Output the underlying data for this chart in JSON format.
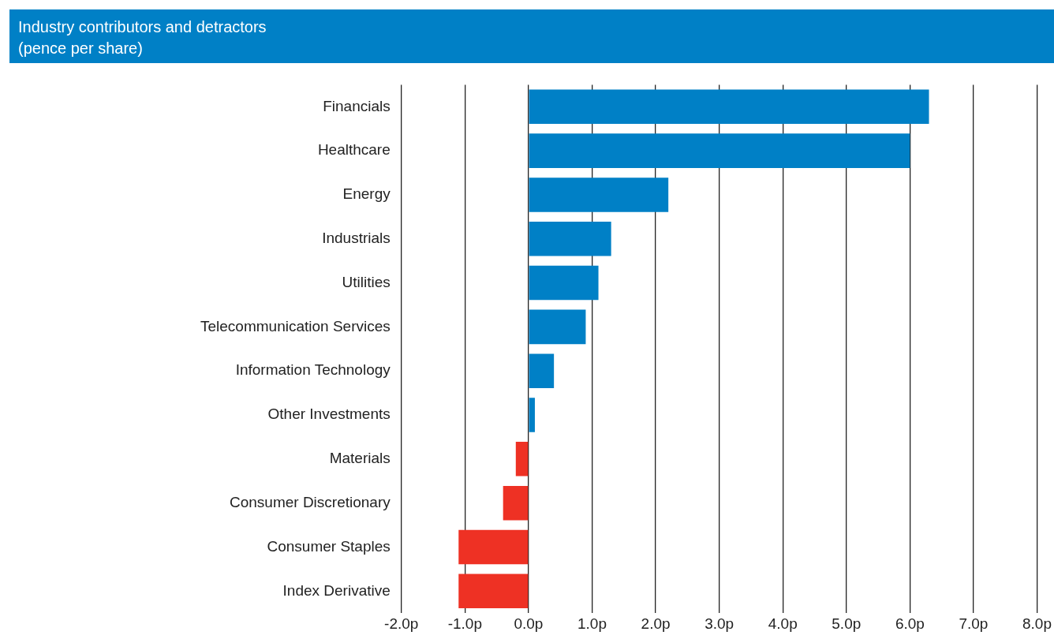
{
  "chart_data": {
    "type": "bar",
    "orientation": "horizontal",
    "title": "Industry contributors and detractors",
    "subtitle": "(pence per share)",
    "categories": [
      "Financials",
      "Healthcare",
      "Energy",
      "Industrials",
      "Utilities",
      "Telecommunication Services",
      "Information Technology",
      "Other Investments",
      "Materials",
      "Consumer Discretionary",
      "Consumer Staples",
      "Index Derivative"
    ],
    "values": [
      6.3,
      6.0,
      2.2,
      1.3,
      1.1,
      0.9,
      0.4,
      0.1,
      -0.2,
      -0.4,
      -1.1,
      -1.1
    ],
    "colors": [
      "#0080c6",
      "#0080c6",
      "#0080c6",
      "#0080c6",
      "#0080c6",
      "#0080c6",
      "#0080c6",
      "#0080c6",
      "#ee3124",
      "#ee3124",
      "#ee3124",
      "#ee3124"
    ],
    "xlim": [
      -2,
      8
    ],
    "xticks": [
      {
        "value": -2,
        "label": "-2.0p"
      },
      {
        "value": -1,
        "label": "-1.0p"
      },
      {
        "value": 0,
        "label": "0.0p"
      },
      {
        "value": 1,
        "label": "1.0p"
      },
      {
        "value": 2,
        "label": "2.0p"
      },
      {
        "value": 3,
        "label": "3.0p"
      },
      {
        "value": 4,
        "label": "4.0p"
      },
      {
        "value": 5,
        "label": "5.0p"
      },
      {
        "value": 6,
        "label": "6.0p"
      },
      {
        "value": 7,
        "label": "7.0p"
      },
      {
        "value": 8,
        "label": "8.0p"
      }
    ],
    "grid": "x"
  }
}
